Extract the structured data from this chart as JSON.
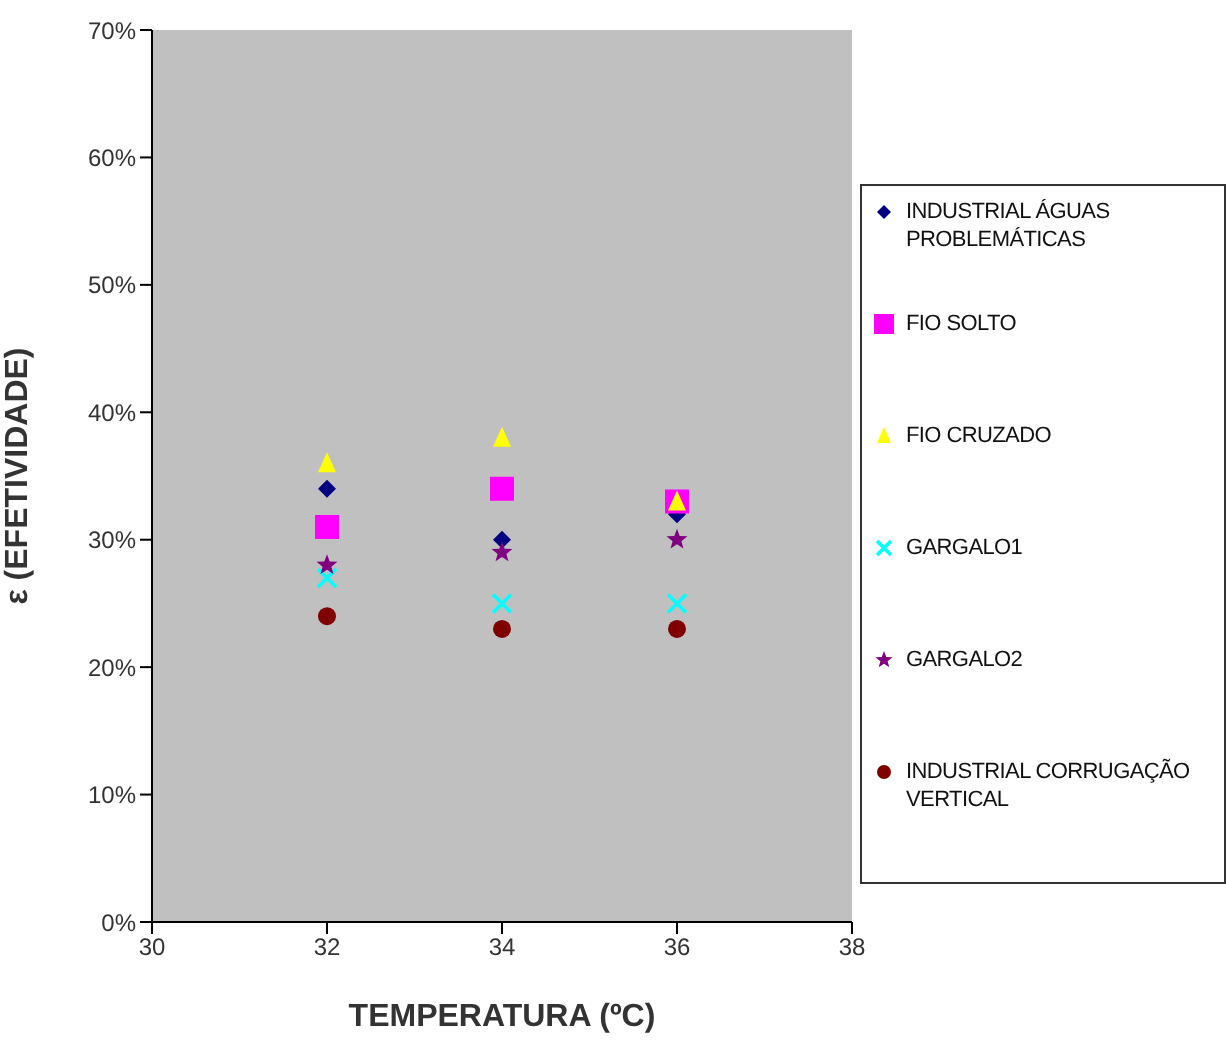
{
  "chart_data": {
    "type": "scatter",
    "xlabel": "TEMPERATURA (ºC)",
    "ylabel": "ε (EFETIVIDADE)",
    "x": [
      32,
      34,
      36
    ],
    "xlim": [
      30,
      38
    ],
    "xticks": [
      30,
      32,
      34,
      36,
      38
    ],
    "ylim": [
      0,
      70
    ],
    "yticks": [
      {
        "value": 0,
        "label": "0%"
      },
      {
        "value": 10,
        "label": "10%"
      },
      {
        "value": 20,
        "label": "20%"
      },
      {
        "value": 30,
        "label": "30%"
      },
      {
        "value": 40,
        "label": "40%"
      },
      {
        "value": 50,
        "label": "50%"
      },
      {
        "value": 60,
        "label": "60%"
      },
      {
        "value": 70,
        "label": "70%"
      }
    ],
    "grid": false,
    "legend": "right",
    "series": [
      {
        "name": "INDUSTRIAL ÁGUAS PROBLEMÁTICAS",
        "color": "#000080",
        "marker": "diamond",
        "values": [
          34,
          30,
          32
        ]
      },
      {
        "name": "FIO SOLTO",
        "color": "#ff00ff",
        "marker": "square",
        "values": [
          31,
          34,
          33
        ]
      },
      {
        "name": "FIO CRUZADO",
        "color": "#ffff00",
        "marker": "triangle",
        "values": [
          36,
          38,
          33
        ]
      },
      {
        "name": "GARGALO1",
        "color": "#00ffff",
        "marker": "cross",
        "values": [
          27,
          25,
          25
        ]
      },
      {
        "name": "GARGALO2",
        "color": "#800080",
        "marker": "star",
        "values": [
          28,
          29,
          30
        ]
      },
      {
        "name": "INDUSTRIAL CORRUGAÇÃO VERTICAL",
        "color": "#800000",
        "marker": "circle",
        "values": [
          24,
          23,
          23
        ]
      }
    ]
  }
}
